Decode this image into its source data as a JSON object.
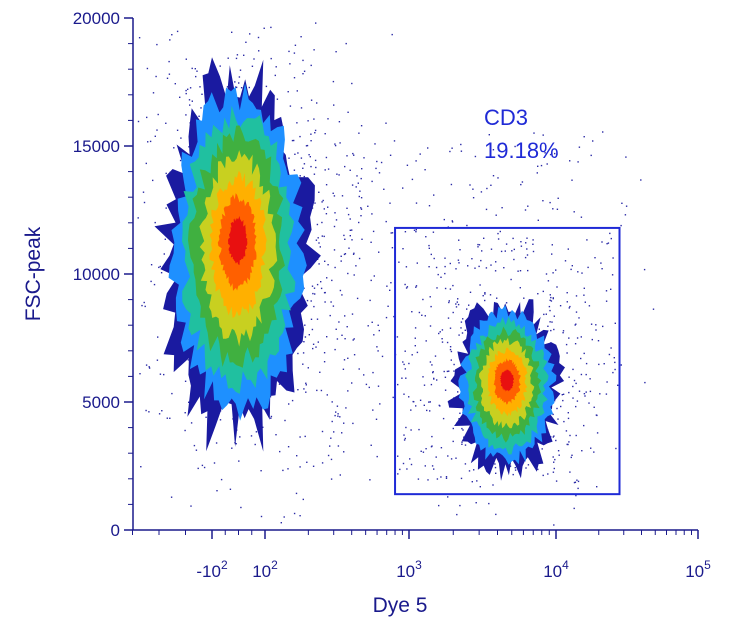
{
  "chart_data": {
    "type": "scatter",
    "subtype": "flow-cytometry density dot plot (pseudocolor)",
    "xlabel": "Dye 5",
    "ylabel": "FSC-peak",
    "x_scale": "biexponential (log above ~100)",
    "y_scale": "linear",
    "ylim": [
      0,
      20000
    ],
    "y_ticks": [
      0,
      5000,
      10000,
      15000,
      20000
    ],
    "y_tick_labels": [
      "0",
      "5000",
      "10000",
      "15000",
      "20000"
    ],
    "x_ticks": [
      -100,
      100,
      1000,
      10000,
      100000
    ],
    "x_tick_labels": [
      {
        "base": "-10",
        "exp": "2"
      },
      {
        "base": "10",
        "exp": "2"
      },
      {
        "base": "10",
        "exp": "3"
      },
      {
        "base": "10",
        "exp": "4"
      },
      {
        "base": "10",
        "exp": "5"
      }
    ],
    "grid": false,
    "density_colors": [
      "#1a1aa0",
      "#1e90ff",
      "#20c0a0",
      "#40b040",
      "#c8d020",
      "#ffb000",
      "#ff6000",
      "#e81010"
    ],
    "dot_color": "#2b2ba6",
    "populations": [
      {
        "center_x": 20,
        "center_y": 11500,
        "spread": "large, elongated vertically",
        "y_range": [
          3500,
          18000
        ]
      },
      {
        "center_x": 4500,
        "center_y": 5800,
        "spread": "compact",
        "y_range": [
          2500,
          10000
        ]
      }
    ],
    "gate": {
      "shape": "rectangle",
      "name": "CD3",
      "percent": "19.18%",
      "x_range": [
        800,
        28000
      ],
      "y_range": [
        1400,
        11800
      ],
      "color": "#1f2ad6"
    }
  }
}
